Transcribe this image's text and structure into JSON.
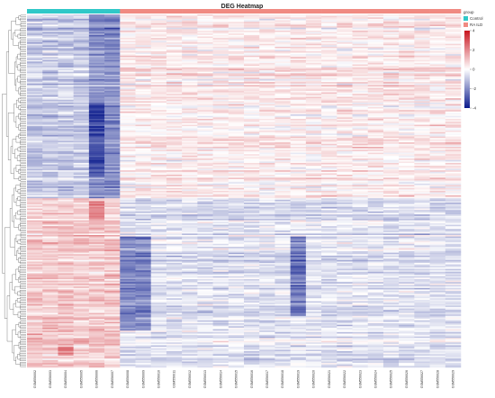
{
  "chart_data": {
    "type": "heatmap",
    "title": "DEG Heatmap",
    "samples": [
      "GSM556002",
      "GSM556003",
      "GSM556004",
      "GSM556005",
      "GSM556006",
      "GSM556007",
      "GSM556008",
      "GSM556009",
      "GSM556010",
      "GSM556011",
      "GSM556012",
      "GSM556013",
      "GSM556014",
      "GSM556015",
      "GSM556016",
      "GSM556017",
      "GSM556018",
      "GSM556019",
      "GSM556020",
      "GSM556021",
      "GSM556022",
      "GSM556023",
      "GSM556024",
      "GSM556025",
      "GSM556026",
      "GSM556027",
      "GSM556028",
      "GSM556029"
    ],
    "groups": [
      "Control",
      "Control",
      "Control",
      "Control",
      "Control",
      "Control",
      "RA ILD",
      "RA ILD",
      "RA ILD",
      "RA ILD",
      "RA ILD",
      "RA ILD",
      "RA ILD",
      "RA ILD",
      "RA ILD",
      "RA ILD",
      "RA ILD",
      "RA ILD",
      "RA ILD",
      "RA ILD",
      "RA ILD",
      "RA ILD",
      "RA ILD",
      "RA ILD",
      "RA ILD",
      "RA ILD",
      "RA ILD",
      "RA ILD"
    ],
    "group_legend": {
      "title": "group",
      "levels": [
        {
          "name": "Control",
          "color": "#30c8c8"
        },
        {
          "name": "RA ILD",
          "color": "#f08a82"
        }
      ]
    },
    "color_scale": {
      "min": -4,
      "max": 4,
      "ticks": [
        4,
        2,
        0,
        -2,
        -4
      ],
      "low_color": "#0a1a8c",
      "mid_color": "#ffffff",
      "high_color": "#c8141e"
    },
    "n_genes": 240,
    "row_dendrogram": true,
    "patterns": [
      {
        "genes": "1-125",
        "control_mean": -0.9,
        "ra_ild_mean": 0.35,
        "note": "down in Control (strong in GSM556005-GSM556007)"
      },
      {
        "genes": "126-240",
        "control_mean": 0.9,
        "ra_ild_mean": -0.5,
        "note": "up in Control; strong blue band in GSM556008-GSM556009 and GSM556018"
      }
    ]
  }
}
